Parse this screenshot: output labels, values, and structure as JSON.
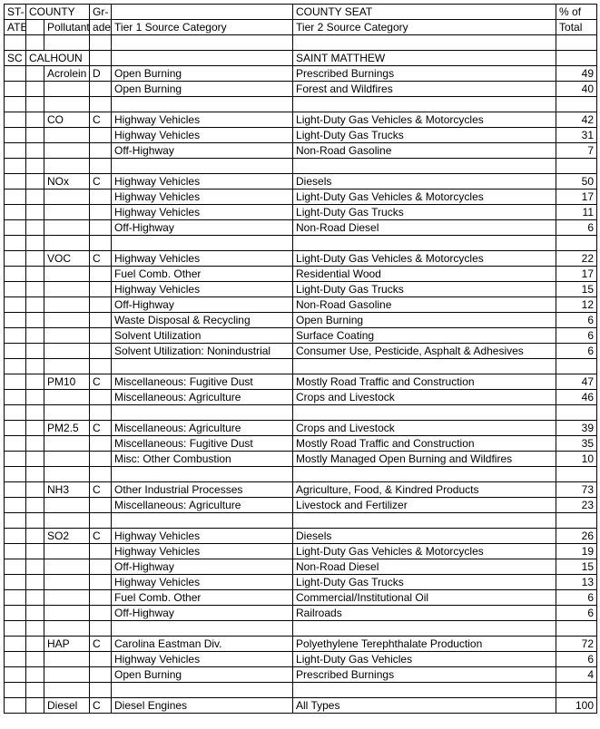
{
  "headers": {
    "state1": "ST-",
    "state2": "ATE",
    "county": "COUNTY",
    "pollutant": "Pollutant",
    "grade1": "Gr-",
    "grade2": "ade",
    "tier1": "Tier 1 Source Category",
    "county_seat": "COUNTY SEAT",
    "tier2": "Tier 2 Source Category",
    "pct1": "% of",
    "pct2": "Total"
  },
  "state": "SC",
  "county": "CALHOUN",
  "county_seat": "SAINT MATTHEW",
  "groups": [
    {
      "pollutant": "Acrolein",
      "grade": "D",
      "rows": [
        {
          "t1": "Open Burning",
          "t2": "Prescribed Burnings",
          "pct": "49"
        },
        {
          "t1": "Open Burning",
          "t2": "Forest and Wildfires",
          "pct": "40"
        }
      ]
    },
    {
      "pollutant": "CO",
      "grade": "C",
      "rows": [
        {
          "t1": "Highway Vehicles",
          "t2": "Light-Duty Gas Vehicles & Motorcycles",
          "pct": "42"
        },
        {
          "t1": "Highway Vehicles",
          "t2": "Light-Duty Gas Trucks",
          "pct": "31"
        },
        {
          "t1": "Off-Highway",
          "t2": "Non-Road Gasoline",
          "pct": "7"
        }
      ]
    },
    {
      "pollutant": "NOx",
      "grade": "C",
      "rows": [
        {
          "t1": "Highway Vehicles",
          "t2": "Diesels",
          "pct": "50"
        },
        {
          "t1": "Highway Vehicles",
          "t2": "Light-Duty Gas Vehicles & Motorcycles",
          "pct": "17"
        },
        {
          "t1": "Highway Vehicles",
          "t2": "Light-Duty Gas Trucks",
          "pct": "11"
        },
        {
          "t1": "Off-Highway",
          "t2": "Non-Road Diesel",
          "pct": "6"
        }
      ]
    },
    {
      "pollutant": "VOC",
      "grade": "C",
      "rows": [
        {
          "t1": "Highway Vehicles",
          "t2": "Light-Duty Gas Vehicles & Motorcycles",
          "pct": "22"
        },
        {
          "t1": "Fuel Comb. Other",
          "t2": "Residential Wood",
          "pct": "17"
        },
        {
          "t1": "Highway Vehicles",
          "t2": "Light-Duty Gas Trucks",
          "pct": "15"
        },
        {
          "t1": "Off-Highway",
          "t2": "Non-Road Gasoline",
          "pct": "12"
        },
        {
          "t1": "Waste Disposal & Recycling",
          "t2": "Open Burning",
          "pct": "6"
        },
        {
          "t1": "Solvent Utilization",
          "t2": "Surface Coating",
          "pct": "6"
        },
        {
          "t1": "Solvent Utilization: Nonindustrial",
          "t2": "Consumer Use, Pesticide, Asphalt & Adhesives",
          "pct": "6"
        }
      ]
    },
    {
      "pollutant": "PM10",
      "grade": "C",
      "rows": [
        {
          "t1": "Miscellaneous: Fugitive Dust",
          "t2": "Mostly Road Traffic and Construction",
          "pct": "47"
        },
        {
          "t1": "Miscellaneous: Agriculture",
          "t2": "Crops and Livestock",
          "pct": "46"
        }
      ]
    },
    {
      "pollutant": "PM2.5",
      "grade": "C",
      "rows": [
        {
          "t1": "Miscellaneous: Agriculture",
          "t2": "Crops and Livestock",
          "pct": "39"
        },
        {
          "t1": "Miscellaneous: Fugitive Dust",
          "t2": "Mostly Road Traffic and Construction",
          "pct": "35"
        },
        {
          "t1": "Misc: Other Combustion",
          "t2": "Mostly Managed Open Burning and Wildfires",
          "pct": "10"
        }
      ]
    },
    {
      "pollutant": "NH3",
      "grade": "C",
      "rows": [
        {
          "t1": "Other Industrial Processes",
          "t2": "Agriculture, Food, & Kindred Products",
          "pct": "73"
        },
        {
          "t1": "Miscellaneous: Agriculture",
          "t2": "Livestock and Fertilizer",
          "pct": "23"
        }
      ]
    },
    {
      "pollutant": "SO2",
      "grade": "C",
      "rows": [
        {
          "t1": "Highway Vehicles",
          "t2": "Diesels",
          "pct": "26"
        },
        {
          "t1": "Highway Vehicles",
          "t2": "Light-Duty Gas Vehicles & Motorcycles",
          "pct": "19"
        },
        {
          "t1": "Off-Highway",
          "t2": "Non-Road Diesel",
          "pct": "15"
        },
        {
          "t1": "Highway Vehicles",
          "t2": "Light-Duty Gas Trucks",
          "pct": "13"
        },
        {
          "t1": "Fuel Comb. Other",
          "t2": "Commercial/Institutional Oil",
          "pct": "6"
        },
        {
          "t1": "Off-Highway",
          "t2": "Railroads",
          "pct": "6"
        }
      ]
    },
    {
      "pollutant": "HAP",
      "grade": "C",
      "rows": [
        {
          "t1": "Carolina Eastman Div.",
          "t2": "Polyethylene Terephthalate Production",
          "pct": "72"
        },
        {
          "t1": "Highway Vehicles",
          "t2": "Light-Duty Gas Vehicles",
          "pct": "6"
        },
        {
          "t1": "Open Burning",
          "t2": "Prescribed Burnings",
          "pct": "4"
        }
      ]
    },
    {
      "pollutant": "Diesel",
      "grade": "C",
      "rows": [
        {
          "t1": "Diesel Engines",
          "t2": "All Types",
          "pct": "100"
        }
      ]
    }
  ]
}
